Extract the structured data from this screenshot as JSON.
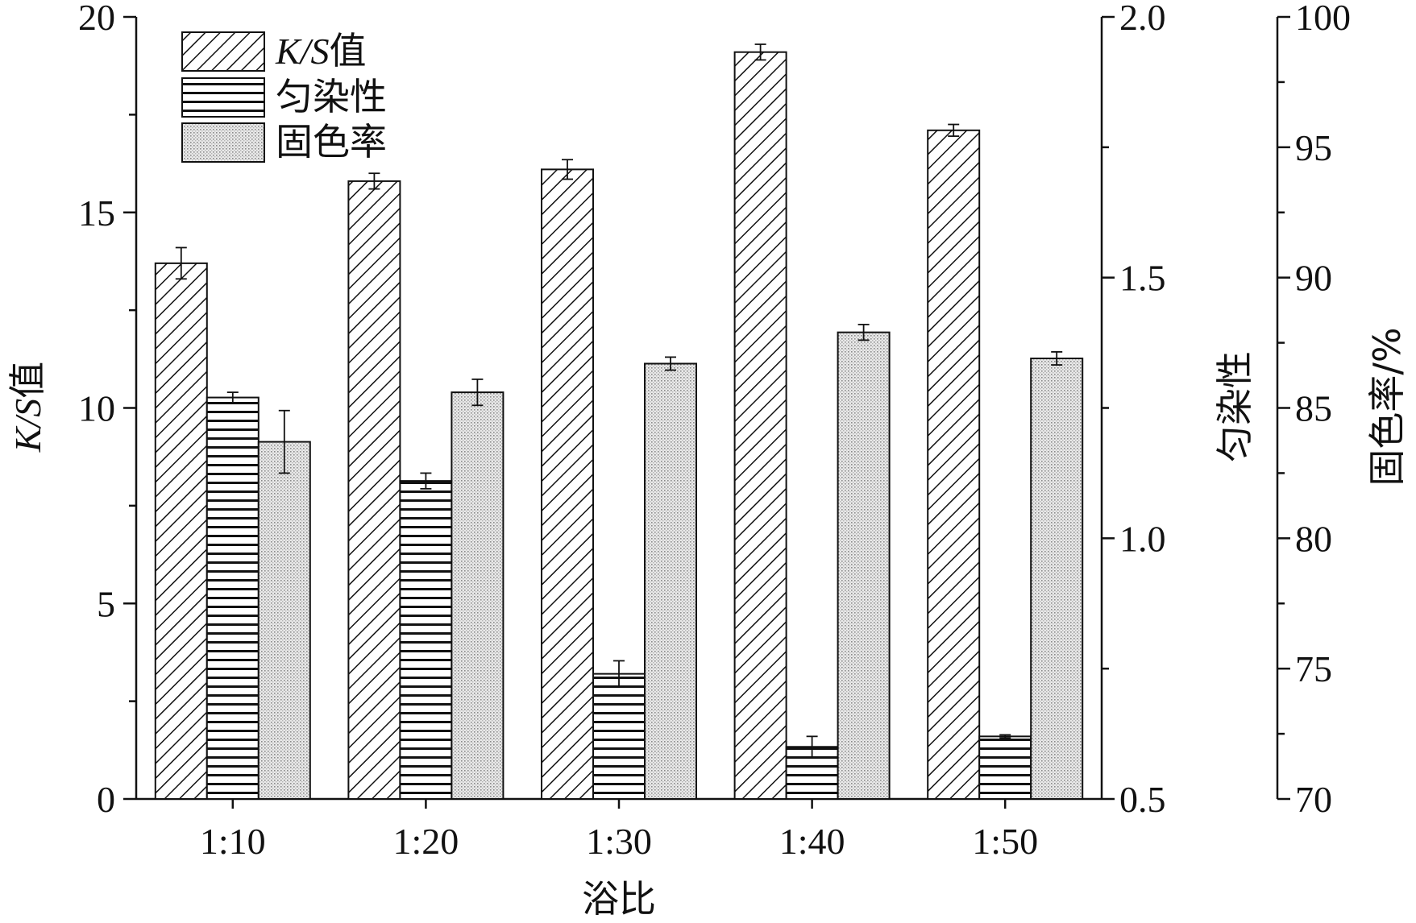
{
  "chart_data": {
    "type": "bar",
    "categories": [
      "1:10",
      "1:20",
      "1:30",
      "1:40",
      "1:50"
    ],
    "xlabel": "浴比",
    "series": [
      {
        "name": "K/S值",
        "axis": "left",
        "values": [
          13.7,
          15.8,
          16.1,
          19.1,
          17.1
        ],
        "errors": [
          0.4,
          0.2,
          0.25,
          0.2,
          0.15
        ],
        "pattern": "diagonal-hatch"
      },
      {
        "name": "匀染性",
        "axis": "right1",
        "values": [
          1.27,
          1.11,
          0.74,
          0.6,
          0.62
        ],
        "errors": [
          0.01,
          0.015,
          0.025,
          0.02,
          0.003
        ],
        "pattern": "horizontal-lines"
      },
      {
        "name": "固色率",
        "axis": "right2",
        "values": [
          83.7,
          85.6,
          86.7,
          87.9,
          86.9
        ],
        "errors": [
          1.2,
          0.5,
          0.25,
          0.3,
          0.25
        ],
        "pattern": "dotted-fill"
      }
    ],
    "axes": {
      "left": {
        "label_prefix": "K/S",
        "label_suffix": "值",
        "ylim": [
          0,
          20
        ],
        "ticks": [
          "0",
          "5",
          "10",
          "15",
          "20"
        ]
      },
      "right1": {
        "label": "匀染性",
        "ylim": [
          0.5,
          2.0
        ],
        "ticks": [
          "0.5",
          "1.0",
          "1.5",
          "2.0"
        ]
      },
      "right2": {
        "label": "固色率/%",
        "ylim": [
          70,
          100
        ],
        "ticks": [
          "70",
          "75",
          "80",
          "85",
          "90",
          "95",
          "100"
        ]
      }
    },
    "legend": {
      "placement": "top-left",
      "items": [
        {
          "label_prefix": "K/S",
          "label_suffix": "值",
          "pattern": "diagonal-hatch"
        },
        {
          "label": "匀染性",
          "pattern": "horizontal-lines"
        },
        {
          "label": "固色率",
          "pattern": "dotted-fill"
        }
      ]
    },
    "grid": false
  }
}
